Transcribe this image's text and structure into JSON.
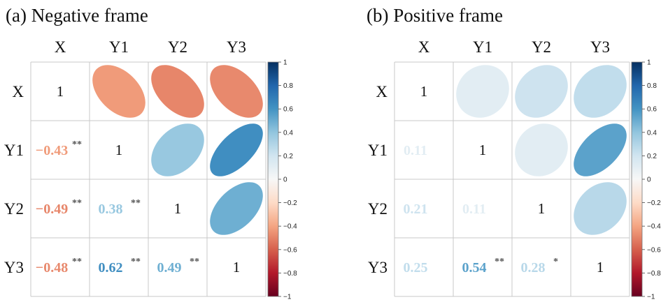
{
  "chart_data": [
    {
      "type": "heatmap",
      "subtype": "correlation-ellipse-matrix",
      "title": "(a) Negative frame",
      "variables": [
        "X",
        "Y1",
        "Y2",
        "Y3"
      ],
      "matrix": [
        [
          1,
          -0.43,
          -0.49,
          -0.48
        ],
        [
          -0.43,
          1,
          0.38,
          0.62
        ],
        [
          -0.49,
          0.38,
          1,
          0.49
        ],
        [
          -0.48,
          0.62,
          0.49,
          1
        ]
      ],
      "lower_labels": [
        {
          "row": 1,
          "col": 0,
          "text": "−0.43",
          "sig": "**"
        },
        {
          "row": 2,
          "col": 0,
          "text": "−0.49",
          "sig": "**"
        },
        {
          "row": 2,
          "col": 1,
          "text": "0.38",
          "sig": "**"
        },
        {
          "row": 3,
          "col": 0,
          "text": "−0.48",
          "sig": "**"
        },
        {
          "row": 3,
          "col": 1,
          "text": "0.62",
          "sig": "**"
        },
        {
          "row": 3,
          "col": 2,
          "text": "0.49",
          "sig": "**"
        }
      ],
      "diagonal_label": "1",
      "colorbar": {
        "min": -1,
        "max": 1,
        "ticks": [
          "1",
          "0.8",
          "0.6",
          "0.4",
          "0.2",
          "0",
          "−0.2",
          "−0.4",
          "−0.6",
          "−0.8",
          "−1"
        ]
      }
    },
    {
      "type": "heatmap",
      "subtype": "correlation-ellipse-matrix",
      "title": "(b) Positive frame",
      "variables": [
        "X",
        "Y1",
        "Y2",
        "Y3"
      ],
      "matrix": [
        [
          1,
          0.11,
          0.21,
          0.25
        ],
        [
          0.11,
          1,
          0.11,
          0.54
        ],
        [
          0.21,
          0.11,
          1,
          0.28
        ],
        [
          0.25,
          0.54,
          0.28,
          1
        ]
      ],
      "lower_labels": [
        {
          "row": 1,
          "col": 0,
          "text": "0.11",
          "sig": ""
        },
        {
          "row": 2,
          "col": 0,
          "text": "0.21",
          "sig": ""
        },
        {
          "row": 2,
          "col": 1,
          "text": "0.11",
          "sig": ""
        },
        {
          "row": 3,
          "col": 0,
          "text": "0.25",
          "sig": ""
        },
        {
          "row": 3,
          "col": 1,
          "text": "0.54",
          "sig": "**"
        },
        {
          "row": 3,
          "col": 2,
          "text": "0.28",
          "sig": "*"
        }
      ],
      "diagonal_label": "1",
      "colorbar": {
        "min": -1,
        "max": 1,
        "ticks": [
          "1",
          "0.8",
          "0.6",
          "0.4",
          "0.2",
          "0",
          "−0.2",
          "−0.4",
          "−0.6",
          "−0.8",
          "−1"
        ]
      }
    }
  ],
  "colors": {
    "scale": [
      "#67001f",
      "#b2182b",
      "#d6604d",
      "#f4a582",
      "#fddbc7",
      "#f7f7f7",
      "#d1e5f0",
      "#92c5de",
      "#4393c3",
      "#2166ac",
      "#053061"
    ]
  }
}
